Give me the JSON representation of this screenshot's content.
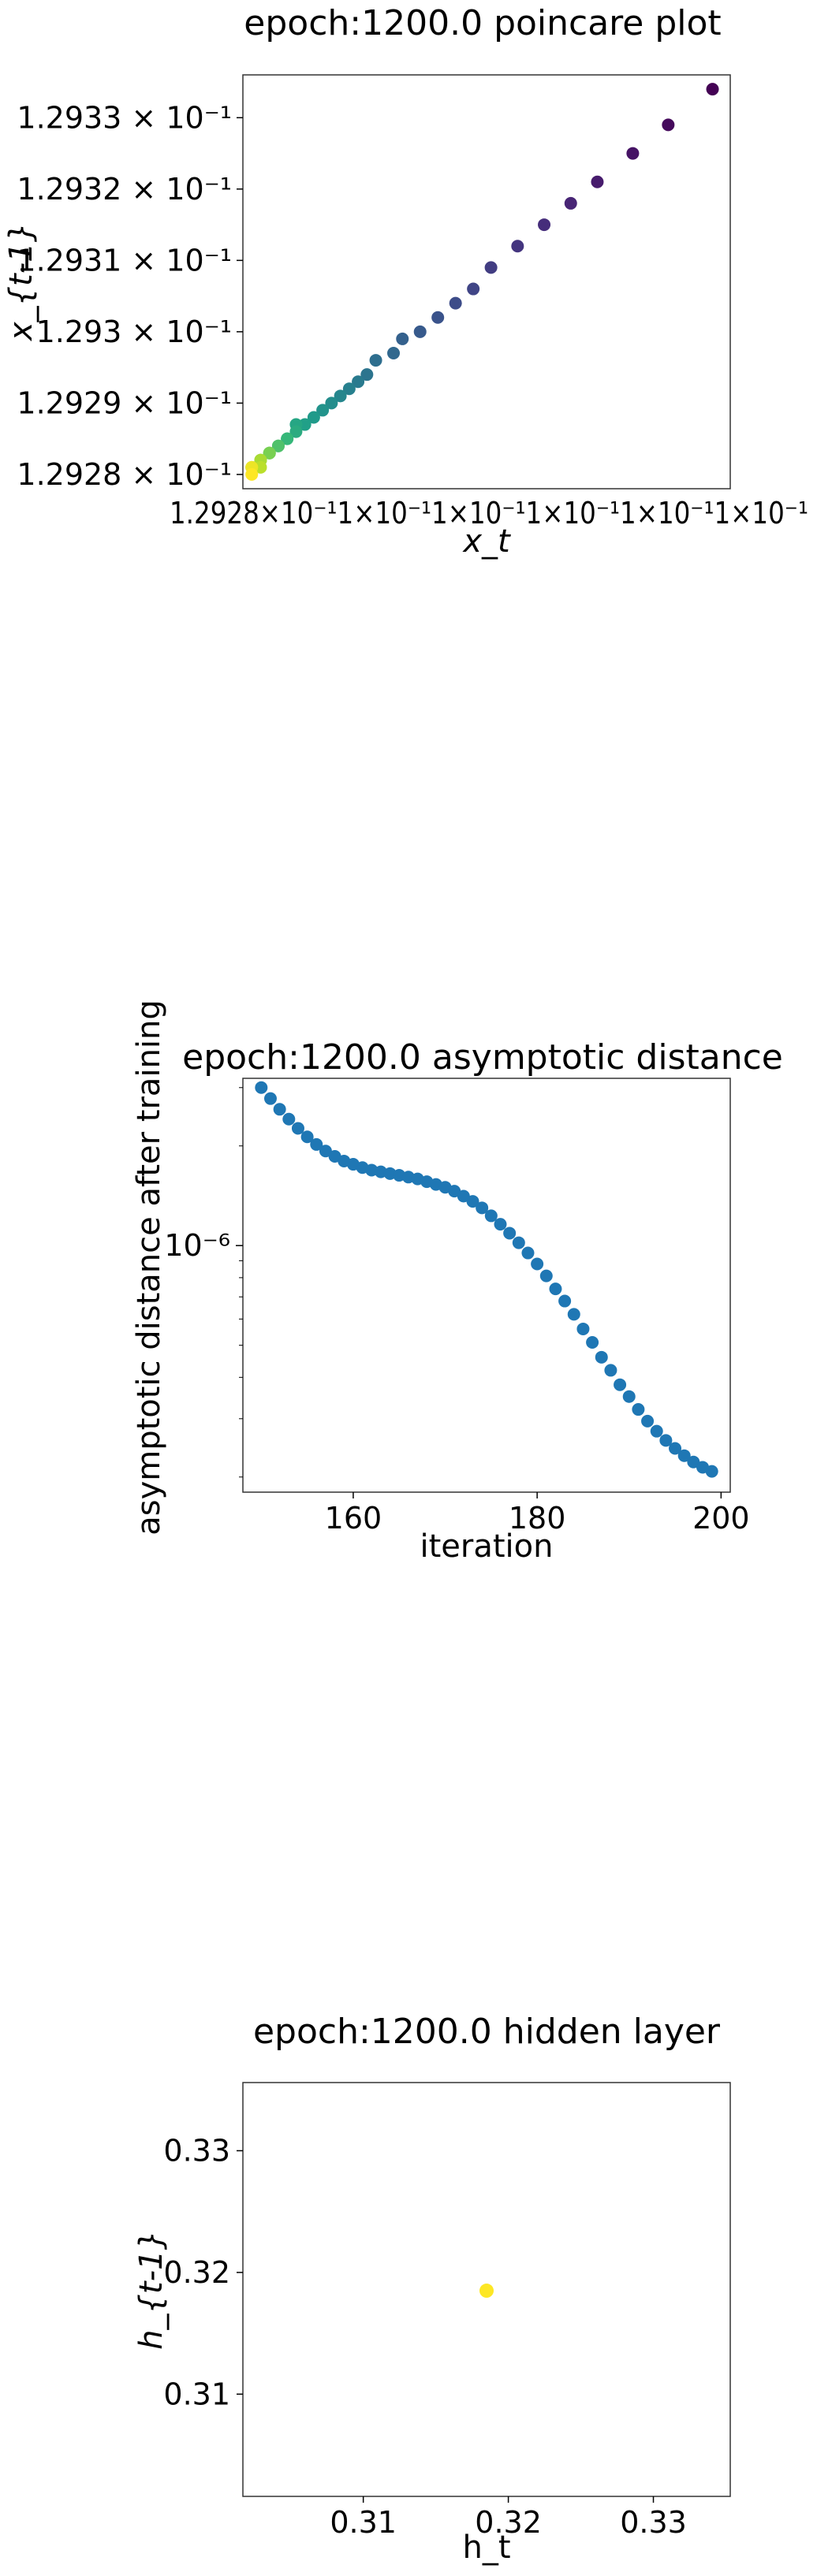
{
  "chart_data": [
    {
      "type": "scatter",
      "title": "epoch:1200.0 poincare plot",
      "xlabel": "x_t",
      "ylabel": "x_{t-1}",
      "colormap": "viridis",
      "x_range": [
        0.12928,
        0.129335
      ],
      "y_range": [
        0.129278,
        0.129336
      ],
      "x_tick_text": "1.2928×10⁻¹1×10⁻¹1×10⁻¹1×10⁻¹1×10⁻¹1×10⁻¹",
      "y_ticks": [
        {
          "value": 0.12928,
          "label": "1.2928 × 10⁻¹"
        },
        {
          "value": 0.12929,
          "label": "1.2929 × 10⁻¹"
        },
        {
          "value": 0.1293,
          "label": "1.293 × 10⁻¹"
        },
        {
          "value": 0.12931,
          "label": "1.2931 × 10⁻¹"
        },
        {
          "value": 0.12932,
          "label": "1.2932 × 10⁻¹"
        },
        {
          "value": 0.12933,
          "label": "1.2933 × 10⁻¹"
        }
      ],
      "x": [
        0.129333,
        0.129328,
        0.129324,
        0.12932,
        0.129317,
        0.129314,
        0.129311,
        0.129308,
        0.129306,
        0.129304,
        0.129302,
        0.1293,
        0.129298,
        0.129297,
        0.129295,
        0.129294,
        0.129293,
        0.129292,
        0.129291,
        0.12929,
        0.129289,
        0.129288,
        0.129287,
        0.129286,
        0.129286,
        0.129285,
        0.129285,
        0.129284,
        0.129284,
        0.129283,
        0.129283,
        0.129283,
        0.129282,
        0.129282,
        0.129282,
        0.129282,
        0.129281,
        0.129281,
        0.129281,
        0.129281
      ],
      "y": [
        0.129334,
        0.129329,
        0.129325,
        0.129321,
        0.129318,
        0.129315,
        0.129312,
        0.129309,
        0.129306,
        0.129304,
        0.129302,
        0.1293,
        0.129299,
        0.129297,
        0.129296,
        0.129294,
        0.129293,
        0.129292,
        0.129291,
        0.12929,
        0.129289,
        0.129288,
        0.129287,
        0.129287,
        0.129286,
        0.129285,
        0.129285,
        0.129284,
        0.129284,
        0.129283,
        0.129283,
        0.129283,
        0.129282,
        0.129282,
        0.129282,
        0.129281,
        0.129281,
        0.129281,
        0.129281,
        0.12928
      ]
    },
    {
      "type": "scatter",
      "title": "epoch:1200.0 asymptotic distance",
      "xlabel": "iteration",
      "ylabel": "asymptotic distance after training",
      "y_scale": "log",
      "color": "#1f77b4",
      "x_range": [
        148,
        201
      ],
      "y_range": [
        1.8e-07,
        3.2e-06
      ],
      "x_ticks": [
        160,
        180,
        200
      ],
      "y_major_tick": {
        "value": 1e-06,
        "label": "10⁻⁶"
      },
      "y_minor_ticks": [
        2e-07,
        3e-07,
        4e-07,
        5e-07,
        6e-07,
        7e-07,
        8e-07,
        9e-07,
        2e-06,
        3e-06
      ],
      "x": [
        150,
        151,
        152,
        153,
        154,
        155,
        156,
        157,
        158,
        159,
        160,
        161,
        162,
        163,
        164,
        165,
        166,
        167,
        168,
        169,
        170,
        171,
        172,
        173,
        174,
        175,
        176,
        177,
        178,
        179,
        180,
        181,
        182,
        183,
        184,
        185,
        186,
        187,
        188,
        189,
        190,
        191,
        192,
        193,
        194,
        195,
        196,
        197,
        198,
        199
      ],
      "y": [
        3e-06,
        2.78e-06,
        2.58e-06,
        2.41e-06,
        2.26e-06,
        2.13e-06,
        2.02e-06,
        1.93e-06,
        1.86e-06,
        1.8e-06,
        1.76e-06,
        1.72e-06,
        1.69e-06,
        1.67e-06,
        1.65e-06,
        1.63e-06,
        1.61e-06,
        1.59e-06,
        1.56e-06,
        1.53e-06,
        1.5e-06,
        1.46e-06,
        1.41e-06,
        1.36e-06,
        1.3e-06,
        1.23e-06,
        1.16e-06,
        1.09e-06,
        1.02e-06,
        9.5e-07,
        8.8e-07,
        8.1e-07,
        7.4e-07,
        6.8e-07,
        6.2e-07,
        5.6e-07,
        5.1e-07,
        4.6e-07,
        4.2e-07,
        3.8e-07,
        3.5e-07,
        3.2e-07,
        2.95e-07,
        2.75e-07,
        2.58e-07,
        2.44e-07,
        2.32e-07,
        2.22e-07,
        2.14e-07,
        2.08e-07
      ]
    },
    {
      "type": "scatter",
      "title": "epoch:1200.0 hidden layer",
      "xlabel": "h_t",
      "ylabel": "h_{t-1}",
      "color": "#fde725",
      "x_range": [
        0.3017,
        0.3353
      ],
      "y_range": [
        0.3016,
        0.3356
      ],
      "x_ticks": [
        0.31,
        0.32,
        0.33
      ],
      "y_ticks": [
        0.31,
        0.32,
        0.33
      ],
      "x": [
        0.3185
      ],
      "y": [
        0.3185
      ]
    }
  ]
}
